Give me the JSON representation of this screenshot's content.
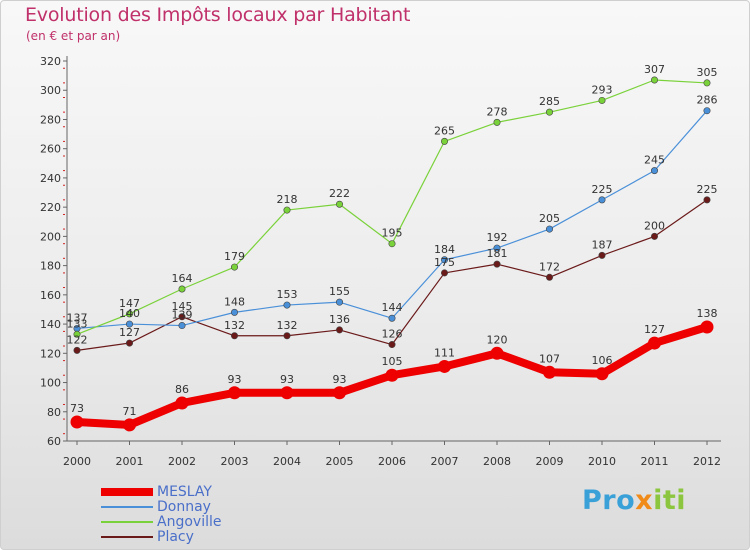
{
  "title": "Evolution des Impôts locaux par Habitant",
  "subtitle": "(en € et par an)",
  "brand": {
    "parts": [
      "Pro",
      "x",
      "iti"
    ]
  },
  "chart_data": {
    "type": "line",
    "x": [
      "2000",
      "2001",
      "2002",
      "2003",
      "2004",
      "2005",
      "2006",
      "2007",
      "2008",
      "2009",
      "2010",
      "2011",
      "2012"
    ],
    "ylim": [
      60,
      320
    ],
    "yticks": [
      60,
      80,
      100,
      120,
      140,
      160,
      180,
      200,
      220,
      240,
      260,
      280,
      300,
      320
    ],
    "grid": false,
    "legend_position": "bottom-left",
    "series": [
      {
        "name": "MESLAY",
        "color": "#ee0000",
        "values": [
          73,
          71,
          86,
          93,
          93,
          93,
          105,
          111,
          120,
          107,
          106,
          127,
          138
        ]
      },
      {
        "name": "Donnay",
        "color": "#4a90d9",
        "values": [
          137,
          140,
          139,
          148,
          153,
          155,
          144,
          184,
          192,
          205,
          225,
          245,
          286
        ]
      },
      {
        "name": "Angoville",
        "color": "#7ad23a",
        "values": [
          133,
          147,
          164,
          179,
          218,
          222,
          195,
          265,
          278,
          285,
          293,
          307,
          305
        ]
      },
      {
        "name": "Placy",
        "color": "#6b1a1a",
        "values": [
          122,
          127,
          145,
          132,
          132,
          136,
          126,
          175,
          181,
          172,
          187,
          200,
          225
        ]
      }
    ]
  }
}
